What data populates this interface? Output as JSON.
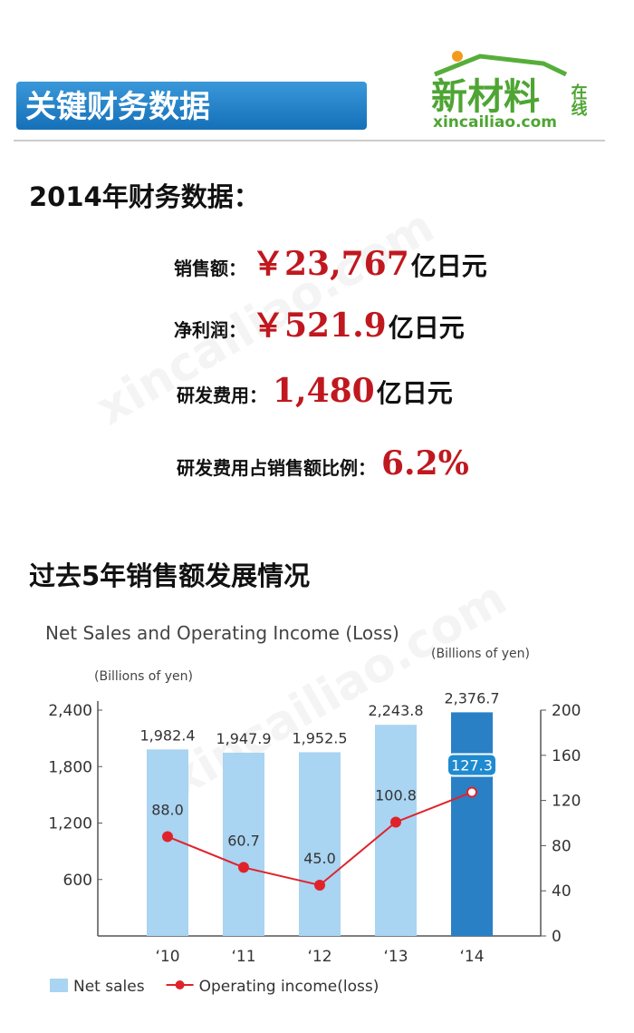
{
  "header": {
    "title": "关键财务数据",
    "logo_main": "新材料",
    "logo_side": "在线",
    "logo_url": "xincailiao.com"
  },
  "financials": {
    "title": "2014年财务数据：",
    "items": [
      {
        "label": "销售额：",
        "value": "￥23,767",
        "unit": "亿日元"
      },
      {
        "label": "净利润：",
        "value": "￥521.9",
        "unit": "亿日元"
      },
      {
        "label": "研发费用：",
        "value": "1,480",
        "unit": "亿日元"
      },
      {
        "label": "研发费用占销售额比例：",
        "value": "6.2%"
      }
    ]
  },
  "section_title": "过去5年销售额发展情况",
  "chart_data": {
    "type": "bar-line",
    "title": "Net Sales and Operating Income (Loss)",
    "y_label": "(Billions of yen)",
    "y2_label": "(Billions of yen)",
    "categories": [
      "‘10",
      "‘11",
      "‘12",
      "‘13",
      "‘14"
    ],
    "series": [
      {
        "name": "Net sales",
        "type": "bar",
        "color": "#a9d4f2",
        "colors": [
          "#a9d4f2",
          "#a9d4f2",
          "#a9d4f2",
          "#a9d4f2",
          "#2a80c4"
        ],
        "values": [
          1982.4,
          1947.9,
          1952.5,
          2243.8,
          2376.7
        ],
        "value_labels": [
          "1,982.4",
          "1,947.9",
          "1,952.5",
          "2,243.8",
          "2,376.7"
        ]
      },
      {
        "name": "Operating income(loss)",
        "type": "line",
        "axis": "y2",
        "color": "#e0232a",
        "values": [
          88.0,
          60.7,
          45.0,
          100.8,
          127.3
        ],
        "value_labels": [
          "88.0",
          "60.7",
          "45.0",
          "100.8",
          "127.3"
        ]
      }
    ],
    "ylim": [
      0,
      2400
    ],
    "yticks": [
      600,
      {
        "value": 1200,
        "label": "1,200"
      },
      {
        "value": 1800,
        "label": "1,800"
      },
      {
        "value": 2400,
        "label": "2,400"
      }
    ],
    "y2lim": [
      0,
      200
    ],
    "y2ticks": [
      0,
      40,
      80,
      120,
      160,
      200
    ],
    "legend": "bottom-left"
  }
}
